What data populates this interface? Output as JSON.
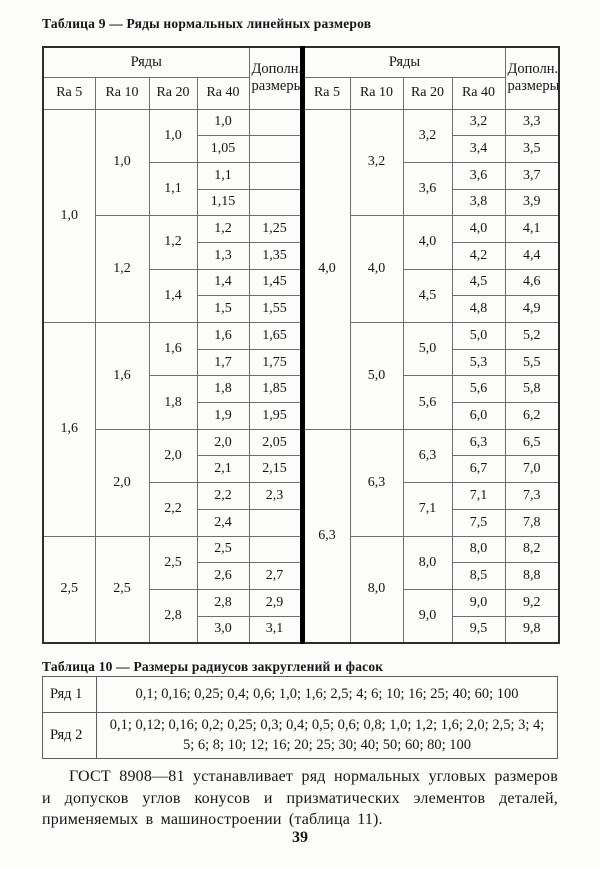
{
  "page": {
    "number": "39"
  },
  "table9": {
    "caption": "Таблица 9 — Ряды нормальных линейных размеров",
    "header": {
      "ryady": "Ряды",
      "cols": [
        "Ra 5",
        "Ra 10",
        "Ra 20",
        "Ra 40"
      ],
      "dopoln": "Дополн. размеры"
    },
    "halves": [
      {
        "ra5": [
          [
            "1,0",
            8
          ],
          [
            "1,6",
            8
          ],
          [
            "2,5",
            4
          ]
        ],
        "ra10": [
          [
            "1,0",
            4
          ],
          [
            "1,2",
            4
          ],
          [
            "1,6",
            4
          ],
          [
            "2,0",
            4
          ],
          [
            "2,5",
            4
          ]
        ],
        "ra20": [
          [
            "1,0",
            2
          ],
          [
            "1,1",
            2
          ],
          [
            "1,2",
            2
          ],
          [
            "1,4",
            2
          ],
          [
            "1,6",
            2
          ],
          [
            "1,8",
            2
          ],
          [
            "2,0",
            2
          ],
          [
            "2,2",
            2
          ],
          [
            "2,5",
            2
          ],
          [
            "2,8",
            2
          ]
        ],
        "ra40": [
          "1,0",
          "1,05",
          "1,1",
          "1,15",
          "1,2",
          "1,3",
          "1,4",
          "1,5",
          "1,6",
          "1,7",
          "1,8",
          "1,9",
          "2,0",
          "2,1",
          "2,2",
          "2,4",
          "2,5",
          "2,6",
          "2,8",
          "3,0"
        ],
        "dop": [
          "",
          "",
          "",
          "",
          "1,25",
          "1,35",
          "1,45",
          "1,55",
          "1,65",
          "1,75",
          "1,85",
          "1,95",
          "2,05",
          "2,15",
          "2,3",
          "",
          "",
          "2,7",
          "2,9",
          "3,1"
        ]
      },
      {
        "ra5": [
          [
            "4,0",
            12
          ],
          [
            "6,3",
            8
          ]
        ],
        "ra10": [
          [
            "3,2",
            4
          ],
          [
            "4,0",
            4
          ],
          [
            "5,0",
            4
          ],
          [
            "6,3",
            4
          ],
          [
            "8,0",
            4
          ]
        ],
        "ra20": [
          [
            "3,2",
            2
          ],
          [
            "3,6",
            2
          ],
          [
            "4,0",
            2
          ],
          [
            "4,5",
            2
          ],
          [
            "5,0",
            2
          ],
          [
            "5,6",
            2
          ],
          [
            "6,3",
            2
          ],
          [
            "7,1",
            2
          ],
          [
            "8,0",
            2
          ],
          [
            "9,0",
            2
          ]
        ],
        "ra40": [
          "3,2",
          "3,4",
          "3,6",
          "3,8",
          "4,0",
          "4,2",
          "4,5",
          "4,8",
          "5,0",
          "5,3",
          "5,6",
          "6,0",
          "6,3",
          "6,7",
          "7,1",
          "7,5",
          "8,0",
          "8,5",
          "9,0",
          "9,5"
        ],
        "dop": [
          "3,3",
          "3,5",
          "3,7",
          "3,9",
          "4,1",
          "4,4",
          "4,6",
          "4,9",
          "5,2",
          "5,5",
          "5,8",
          "6,2",
          "6,5",
          "7,0",
          "7,3",
          "7,8",
          "8,2",
          "8,8",
          "9,2",
          "9,8"
        ]
      }
    ]
  },
  "table10": {
    "caption": "Таблица 10 — Размеры радиусов закруглений и фасок",
    "rows": [
      {
        "label": "Ряд 1",
        "values": "0,1; 0,16; 0,25; 0,4; 0,6; 1,0; 1,6; 2,5; 4; 6; 10; 16; 25; 40; 60; 100"
      },
      {
        "label": "Ряд 2",
        "values": "0,1; 0,12; 0,16; 0,2; 0,25; 0,3; 0,4; 0,5; 0,6; 0,8; 1,0; 1,2; 1,6; 2,0; 2,5; 3; 4; 5; 6; 8; 10; 12; 16; 20; 25; 30; 40; 50; 60; 80; 100"
      }
    ]
  },
  "paragraph": "ГОСТ 8908—81 устанавливает ряд нормальных угловых размеров и допусков углов конусов и призматических элементов деталей, применяемых в машиностроении (таблица 11)."
}
